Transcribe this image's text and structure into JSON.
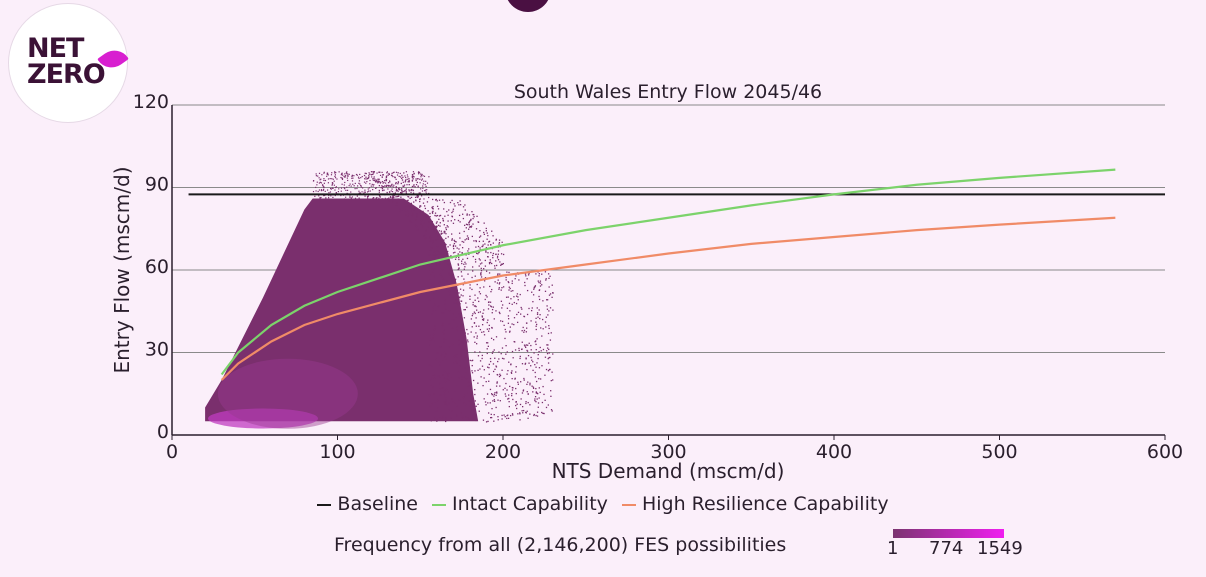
{
  "badge": {
    "line1": "NET",
    "line2": "ZERO"
  },
  "legend": [
    {
      "label": "Baseline",
      "color": "#1a1a1a"
    },
    {
      "label": "Intact Capability",
      "color": "#7cd36b"
    },
    {
      "label": "High Resilience Capability",
      "color": "#f08b67"
    }
  ],
  "frequency": {
    "label": "Frequency from all (2,146,200) FES possibilities",
    "ticks": [
      "1",
      "774",
      "1549"
    ],
    "color_low": "#7b3470",
    "color_high": "#f01ef0"
  },
  "chart_data": {
    "type": "scatter",
    "title": "South Wales Entry Flow 2045/46",
    "xlabel": "NTS Demand (mscm/d)",
    "ylabel": "Entry Flow (mscm/d)",
    "xlim": [
      0,
      600
    ],
    "ylim": [
      0,
      120
    ],
    "xticks": [
      0,
      100,
      200,
      300,
      400,
      500,
      600
    ],
    "yticks": [
      0,
      30,
      60,
      90,
      120
    ],
    "grid": "horizontal",
    "baseline": {
      "name": "Baseline",
      "y": 87.5,
      "x": [
        10,
        600
      ]
    },
    "series": [
      {
        "name": "Intact Capability",
        "color": "#7cd36b",
        "x": [
          30,
          40,
          60,
          80,
          100,
          150,
          200,
          250,
          300,
          350,
          400,
          450,
          500,
          570
        ],
        "y": [
          22,
          30,
          40,
          47,
          52,
          62,
          69,
          74.5,
          79,
          83.5,
          87.5,
          91,
          93.5,
          96.5
        ]
      },
      {
        "name": "High Resilience Capability",
        "color": "#f08b67",
        "x": [
          30,
          40,
          60,
          80,
          100,
          150,
          200,
          250,
          300,
          350,
          400,
          450,
          500,
          570
        ],
        "y": [
          20,
          26,
          34,
          40,
          44,
          52,
          58,
          62,
          66,
          69.5,
          72,
          74.5,
          76.5,
          79
        ]
      }
    ],
    "density": {
      "description_range_x": [
        20,
        230
      ],
      "description_range_y": [
        5,
        96
      ],
      "frequency_range": [
        1,
        1549
      ]
    }
  }
}
